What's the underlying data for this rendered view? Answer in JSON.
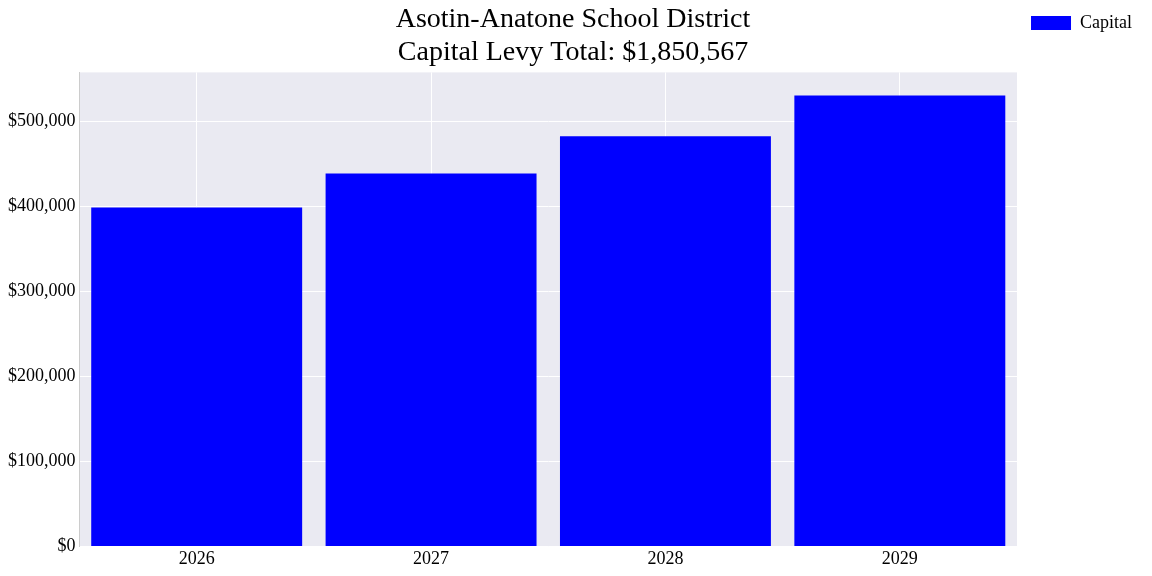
{
  "chart_data": {
    "type": "bar",
    "title": [
      "Asotin-Anatone School District",
      "Capital Levy Total: $1,850,567"
    ],
    "categories": [
      "2026",
      "2027",
      "2028",
      "2029"
    ],
    "series": [
      {
        "name": "Capital",
        "color": "#0000ff",
        "values": [
          398800,
          438800,
          482400,
          530567
        ]
      }
    ],
    "ylim": [
      0,
      557600
    ],
    "yticks": [
      {
        "value": 0,
        "label": "$0"
      },
      {
        "value": 100000,
        "label": "$100,000"
      },
      {
        "value": 200000,
        "label": "$200,000"
      },
      {
        "value": 300000,
        "label": "$300,000"
      },
      {
        "value": 400000,
        "label": "$400,000"
      },
      {
        "value": 500000,
        "label": "$500,000"
      }
    ],
    "grid": true,
    "legend": "right"
  }
}
